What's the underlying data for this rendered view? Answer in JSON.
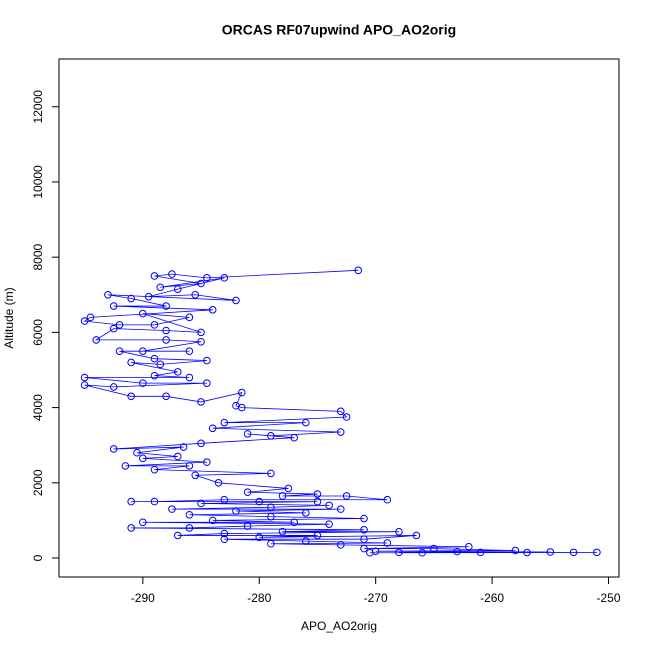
{
  "chart_data": {
    "type": "scatter",
    "title": "ORCAS RF07upwind APO_AO2orig",
    "x_label": "APO_AO2orig",
    "y_label": "Altitude (m)",
    "color": "#0000ff",
    "connect": true,
    "xlim": [
      -297.2,
      -249.1
    ],
    "ylim": [
      -505,
      13270
    ],
    "xticks": [
      -290,
      -280,
      -270,
      -260,
      -250
    ],
    "yticks": [
      0,
      2000,
      4000,
      6000,
      8000,
      10000,
      12000
    ],
    "x": [
      -271.5,
      -284.5,
      -287.5,
      -289,
      -285,
      -288.5,
      -283,
      -287,
      -289.5,
      -285.5,
      -282,
      -293,
      -291,
      -288,
      -292.5,
      -284,
      -294.5,
      -295,
      -292,
      -289,
      -286,
      -290,
      -285,
      -288,
      -292.5,
      -294,
      -288,
      -285,
      -290,
      -286,
      -292,
      -289,
      -284.5,
      -288.5,
      -291,
      -287,
      -289,
      -286,
      -295,
      -290,
      -284.5,
      -292.5,
      -295,
      -291,
      -288,
      -285,
      -281.5,
      -282,
      -281.5,
      -273,
      -272.5,
      -283,
      -276,
      -284,
      -273,
      -279,
      -281,
      -277,
      -285,
      -292.5,
      -286.5,
      -290.5,
      -287,
      -290,
      -284.5,
      -291.5,
      -286,
      -289,
      -279,
      -285.5,
      -283.5,
      -277.5,
      -281,
      -275,
      -278,
      -272.5,
      -269,
      -283,
      -289,
      -291,
      -280,
      -275,
      -285,
      -274,
      -279,
      -287.5,
      -273,
      -282,
      -276,
      -286,
      -279,
      -271,
      -284,
      -277,
      -290,
      -274,
      -281,
      -286,
      -291,
      -271,
      -278,
      -268,
      -283,
      -287,
      -275,
      -280,
      -266.5,
      -271,
      -283,
      -276,
      -269,
      -279,
      -273,
      -262,
      -271,
      -265,
      -258,
      -270,
      -263,
      -255,
      -268,
      -261,
      -253,
      -251,
      -266,
      -257,
      -270.5
    ],
    "values": [
      7650,
      7450,
      7550,
      7500,
      7300,
      7200,
      7450,
      7150,
      6950,
      7000,
      6850,
      7000,
      6900,
      6700,
      6700,
      6600,
      6400,
      6300,
      6200,
      6200,
      6400,
      6500,
      6000,
      6050,
      6100,
      5800,
      5800,
      5750,
      5500,
      5500,
      5500,
      5300,
      5250,
      5150,
      5200,
      4950,
      4850,
      4800,
      4800,
      4650,
      4650,
      4550,
      4600,
      4300,
      4300,
      4150,
      4400,
      4050,
      4000,
      3900,
      3750,
      3600,
      3600,
      3450,
      3350,
      3250,
      3300,
      3200,
      3050,
      2900,
      2950,
      2800,
      2700,
      2650,
      2550,
      2450,
      2450,
      2350,
      2250,
      2200,
      2000,
      1850,
      1750,
      1700,
      1650,
      1650,
      1550,
      1550,
      1500,
      1500,
      1500,
      1500,
      1450,
      1400,
      1350,
      1300,
      1300,
      1250,
      1200,
      1150,
      1100,
      1050,
      1000,
      950,
      950,
      900,
      850,
      800,
      800,
      750,
      700,
      700,
      650,
      600,
      600,
      550,
      600,
      500,
      500,
      450,
      400,
      380,
      350,
      300,
      250,
      250,
      200,
      180,
      170,
      160,
      150,
      150,
      150,
      150,
      140,
      145,
      140
    ]
  }
}
